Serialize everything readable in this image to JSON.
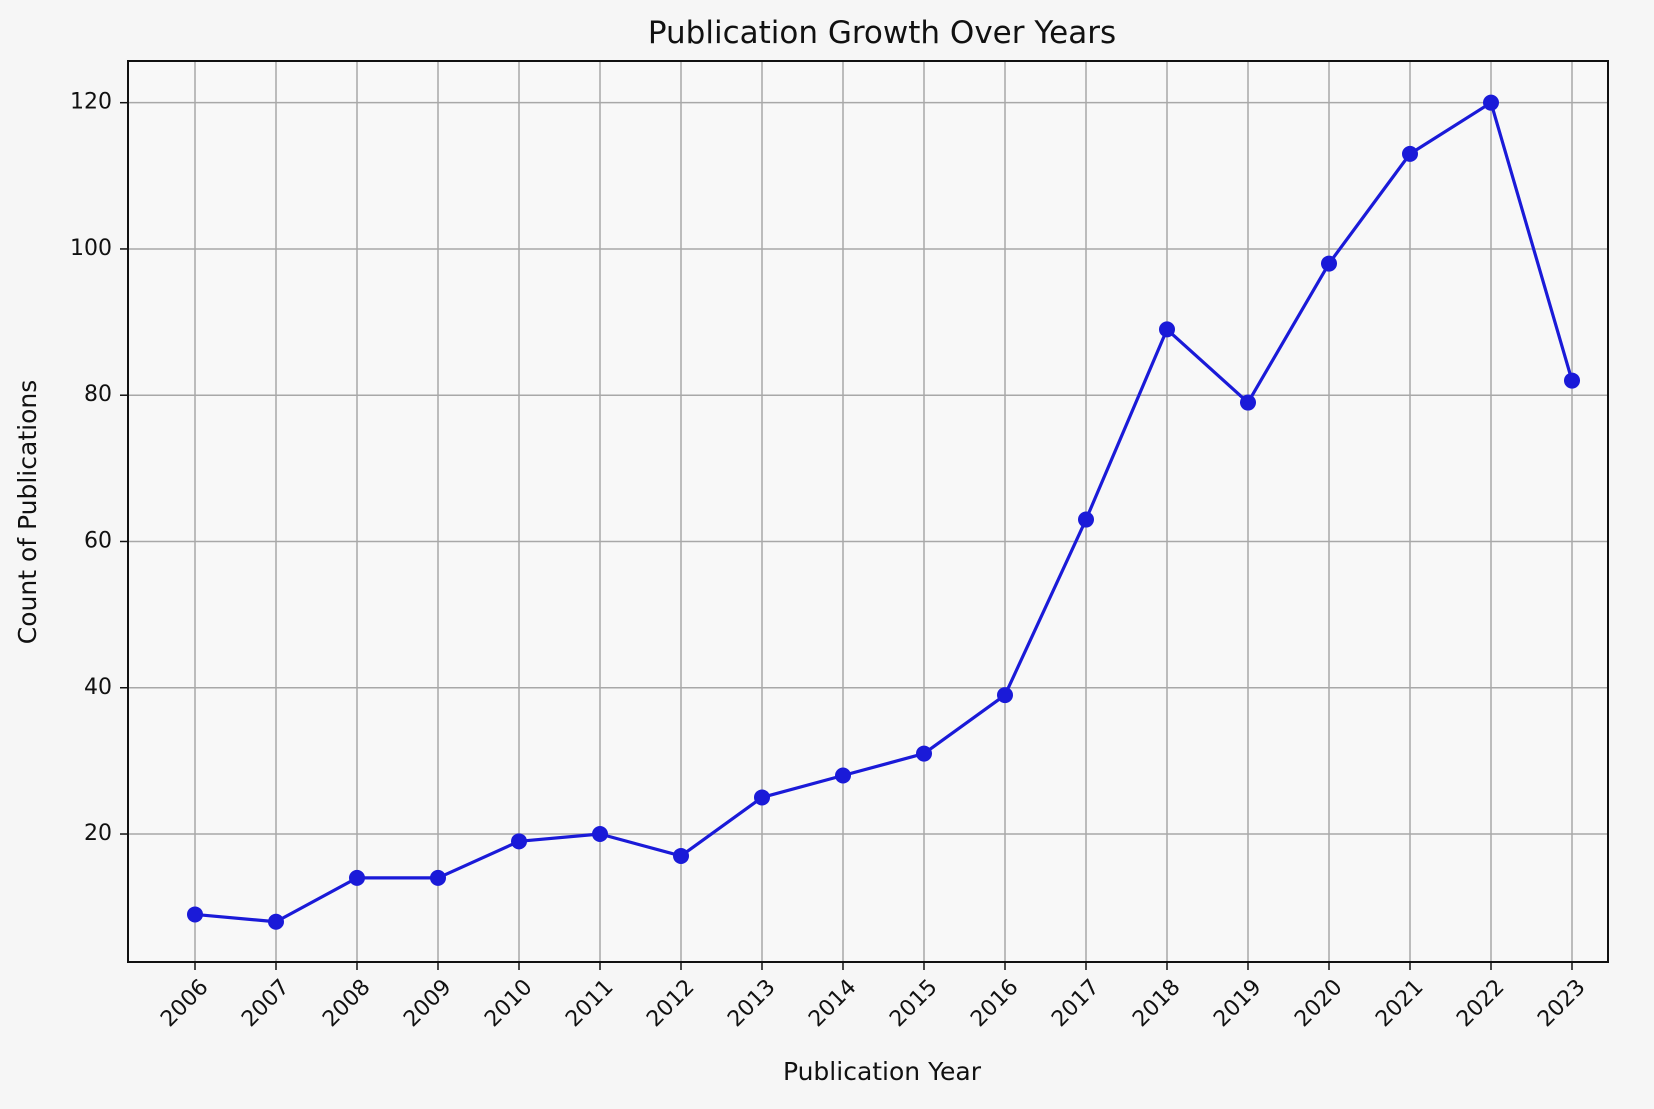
{
  "chart_data": {
    "type": "line",
    "title": "Publication Growth Over Years",
    "xlabel": "Publication Year",
    "ylabel": "Count of Publications",
    "x": [
      "2006",
      "2007",
      "2008",
      "2009",
      "2010",
      "2011",
      "2012",
      "2013",
      "2014",
      "2015",
      "2016",
      "2017",
      "2018",
      "2019",
      "2020",
      "2021",
      "2022",
      "2023"
    ],
    "series": [
      {
        "values": [
          9,
          8,
          14,
          14,
          19,
          20,
          17,
          25,
          28,
          31,
          39,
          63,
          89,
          79,
          98,
          113,
          120,
          82
        ],
        "color": "#1a1ad8",
        "marker": "circle"
      }
    ],
    "yticks": [
      20,
      40,
      60,
      80,
      100,
      120
    ],
    "ylim": [
      2.5,
      125.7
    ],
    "grid": true,
    "legend": "none"
  }
}
